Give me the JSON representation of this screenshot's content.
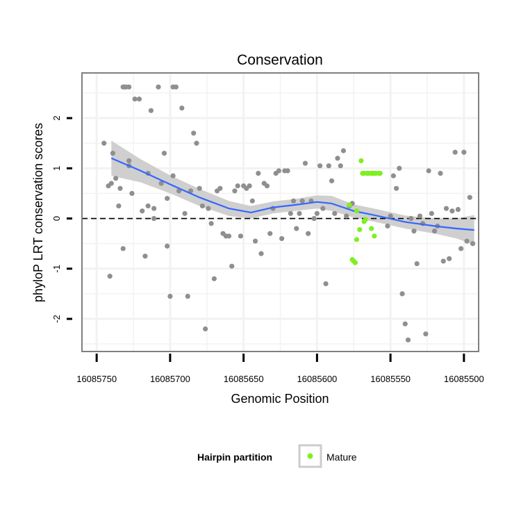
{
  "chart_data": {
    "type": "scatter",
    "title": "Conservation",
    "xlabel": "Genomic Position",
    "ylabel": "phyloP LRT conservation scores",
    "xlim": [
      16085760,
      16085490
    ],
    "ylim": [
      -2.65,
      2.9
    ],
    "x_reversed": true,
    "x_ticks": [
      16085750,
      16085700,
      16085650,
      16085600,
      16085550,
      16085500
    ],
    "x_tick_labels": [
      "16085750",
      "16085700",
      "16085650",
      "16085600",
      "16085550",
      "16085500"
    ],
    "y_ticks": [
      -2,
      -1,
      0,
      1,
      2
    ],
    "y_tick_labels": [
      "-2",
      "-1",
      "0",
      "1",
      "2"
    ],
    "grid": true,
    "reference_line": {
      "y": 0,
      "style": "dashed"
    },
    "colors": {
      "other": "#8f8f8f",
      "mature": "#7fef1f",
      "smooth": "#3366ff",
      "ribbon": "#cfcfcf",
      "panel_border": "#7f7f7f",
      "grid": "#f2f2f2"
    },
    "legend": {
      "title": "Hairpin partition",
      "position": "bottom",
      "entries": [
        {
          "label": "Mature",
          "color": "#7fef1f"
        }
      ]
    },
    "smooth": {
      "x": [
        16085740,
        16085720,
        16085700,
        16085680,
        16085660,
        16085645,
        16085630,
        16085615,
        16085600,
        16085590,
        16085575,
        16085560,
        16085540,
        16085520,
        16085505,
        16085493
      ],
      "y": [
        1.2,
        0.95,
        0.68,
        0.42,
        0.2,
        0.12,
        0.22,
        0.27,
        0.33,
        0.3,
        0.15,
        0.06,
        -0.07,
        -0.15,
        -0.2,
        -0.23
      ],
      "lower": [
        0.85,
        0.72,
        0.5,
        0.25,
        0.05,
        0.0,
        0.1,
        0.15,
        0.2,
        0.15,
        0.02,
        -0.07,
        -0.2,
        -0.3,
        -0.4,
        -0.52
      ],
      "upper": [
        1.55,
        1.18,
        0.86,
        0.59,
        0.35,
        0.25,
        0.34,
        0.39,
        0.46,
        0.45,
        0.28,
        0.19,
        0.06,
        0.0,
        0.0,
        0.07
      ]
    },
    "series": [
      {
        "name": "Mature",
        "color": "#7fef1f",
        "x": [
          16085574,
          16085578,
          16085575,
          16085576,
          16085573,
          16085571,
          16085568,
          16085573,
          16085570,
          16085566,
          16085565,
          16085563,
          16085563,
          16085561,
          16085569,
          16085568,
          16085567,
          16085565,
          16085563,
          16085562,
          16085561,
          16085560,
          16085558,
          16085557
        ],
        "y": [
          -0.88,
          0.27,
          -0.85,
          -0.82,
          0.15,
          -0.22,
          -0.06,
          -0.42,
          1.15,
          0.9,
          0.9,
          0.9,
          -0.2,
          -0.35,
          0.9,
          0.9,
          -0.02,
          0.9,
          0.9,
          0.9,
          0.9,
          0.9,
          0.9,
          0.9
        ]
      },
      {
        "name": "Other",
        "color": "#8f8f8f",
        "x": [
          16085745,
          16085742,
          16085741,
          16085739,
          16085737,
          16085735,
          16085732,
          16085730,
          16085728,
          16085726,
          16085724,
          16085721,
          16085719,
          16085717,
          16085715,
          16085713,
          16085711,
          16085708,
          16085706,
          16085704,
          16085702,
          16085700,
          16085698,
          16085696,
          16085694,
          16085692,
          16085690,
          16085688,
          16085686,
          16085684,
          16085682,
          16085680,
          16085678,
          16085676,
          16085674,
          16085672,
          16085670,
          16085668,
          16085666,
          16085664,
          16085662,
          16085660,
          16085658,
          16085656,
          16085654,
          16085652,
          16085650,
          16085648,
          16085646,
          16085644,
          16085642,
          16085640,
          16085638,
          16085636,
          16085634,
          16085632,
          16085630,
          16085628,
          16085626,
          16085624,
          16085622,
          16085620,
          16085618,
          16085616,
          16085614,
          16085612,
          16085610,
          16085608,
          16085606,
          16085604,
          16085602,
          16085600,
          16085598,
          16085596,
          16085594,
          16085592,
          16085590,
          16085588,
          16085586,
          16085584,
          16085582,
          16085580,
          16085578,
          16085576,
          16085552,
          16085550,
          16085548,
          16085546,
          16085544,
          16085542,
          16085540,
          16085538,
          16085536,
          16085534,
          16085532,
          16085530,
          16085528,
          16085526,
          16085524,
          16085522,
          16085520,
          16085518,
          16085516,
          16085514,
          16085512,
          16085510,
          16085508,
          16085506,
          16085504,
          16085502,
          16085500,
          16085498,
          16085496,
          16085494,
          16085731,
          16085728,
          16085711,
          16085702,
          16085698,
          16085715,
          16085732,
          16085728,
          16085734,
          16085740
        ],
        "y": [
          1.5,
          0.65,
          -1.15,
          1.3,
          0.8,
          0.25,
          2.62,
          2.62,
          1.05,
          0.5,
          2.38,
          2.38,
          0.15,
          -0.75,
          0.9,
          2.15,
          0.2,
          2.62,
          0.7,
          1.3,
          0.4,
          -1.55,
          2.62,
          2.62,
          0.55,
          2.2,
          0.1,
          -1.55,
          0.55,
          1.7,
          1.5,
          0.6,
          0.25,
          -2.2,
          0.2,
          -0.1,
          -1.2,
          0.55,
          0.6,
          -0.3,
          -0.35,
          -0.35,
          -0.95,
          0.55,
          0.65,
          -0.35,
          0.65,
          0.6,
          0.65,
          0.35,
          -0.45,
          0.9,
          -0.7,
          0.7,
          0.65,
          -0.3,
          0.2,
          0.9,
          0.95,
          -0.4,
          0.95,
          0.95,
          0.1,
          0.35,
          -0.2,
          0.1,
          0.35,
          1.1,
          -0.3,
          0.35,
          0.0,
          0.1,
          1.05,
          0.2,
          -1.3,
          1.05,
          0.75,
          0.1,
          1.2,
          1.05,
          1.35,
          0.05,
          0.25,
          0.3,
          -0.15,
          0.05,
          0.85,
          0.6,
          1.0,
          -1.5,
          -2.1,
          -2.42,
          0.0,
          -0.25,
          -0.9,
          0.05,
          -0.1,
          -2.3,
          0.95,
          0.1,
          -0.25,
          -0.15,
          0.9,
          -0.85,
          0.2,
          -0.8,
          0.15,
          1.32,
          0.18,
          -0.6,
          1.32,
          -0.45,
          0.42,
          -0.5,
          2.62,
          2.62,
          0.0,
          -0.55,
          0.85,
          0.25,
          -0.6,
          1.15,
          0.6,
          0.7
        ]
      }
    ]
  }
}
